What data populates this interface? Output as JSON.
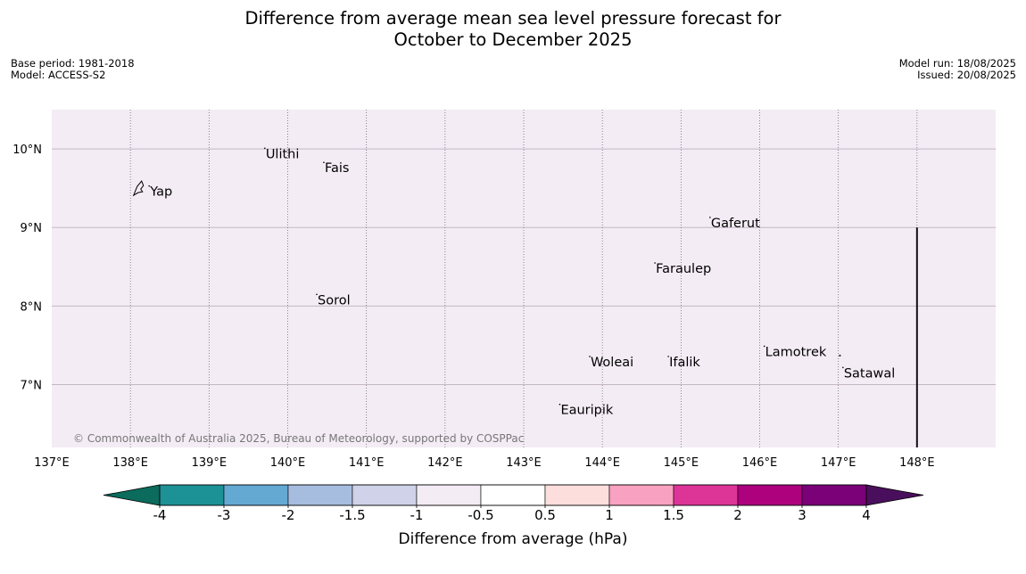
{
  "title_line1": "Difference from average mean sea level pressure forecast for",
  "title_line2": "October to December 2025",
  "meta_left": {
    "base_period": "Base period: 1981-2018",
    "model": "Model: ACCESS-S2"
  },
  "meta_right": {
    "model_run": "Model run: 18/08/2025",
    "issued": "Issued: 20/08/2025"
  },
  "copyright": "© Commonwealth of Australia 2025, Bureau of Meteorology, supported by COSPPac",
  "map": {
    "lon_range": [
      137.0,
      149.0
    ],
    "lat_range": [
      6.2,
      10.5
    ],
    "background_color": "#f4ecf5",
    "lon_ticks": [
      {
        "value": 137,
        "label": "137°E"
      },
      {
        "value": 138,
        "label": "138°E"
      },
      {
        "value": 139,
        "label": "139°E"
      },
      {
        "value": 140,
        "label": "140°E"
      },
      {
        "value": 141,
        "label": "141°E"
      },
      {
        "value": 142,
        "label": "142°E"
      },
      {
        "value": 143,
        "label": "143°E"
      },
      {
        "value": 144,
        "label": "144°E"
      },
      {
        "value": 145,
        "label": "145°E"
      },
      {
        "value": 146,
        "label": "146°E"
      },
      {
        "value": 147,
        "label": "147°E"
      },
      {
        "value": 148,
        "label": "148°E"
      }
    ],
    "lat_ticks": [
      {
        "value": 10,
        "label": "10°N"
      },
      {
        "value": 9,
        "label": "9°N"
      },
      {
        "value": 8,
        "label": "8°N"
      },
      {
        "value": 7,
        "label": "7°N"
      }
    ],
    "places": [
      {
        "name": "Yap",
        "lon": 138.25,
        "lat": 9.46
      },
      {
        "name": "Ulithi",
        "lon": 139.72,
        "lat": 9.94
      },
      {
        "name": "Fais",
        "lon": 140.47,
        "lat": 9.76
      },
      {
        "name": "Gaferut",
        "lon": 145.38,
        "lat": 9.06
      },
      {
        "name": "Faraulep",
        "lon": 144.68,
        "lat": 8.48
      },
      {
        "name": "Sorol",
        "lon": 140.38,
        "lat": 8.08
      },
      {
        "name": "Woleai",
        "lon": 143.85,
        "lat": 7.29
      },
      {
        "name": "Ifalik",
        "lon": 144.85,
        "lat": 7.29
      },
      {
        "name": "Lamotrek",
        "lon": 146.07,
        "lat": 7.42
      },
      {
        "name": "Satawal",
        "lon": 147.07,
        "lat": 7.15
      },
      {
        "name": "Eauripik",
        "lon": 143.47,
        "lat": 6.68
      }
    ],
    "boundary_line": {
      "lon": 148.0,
      "lat_from": 6.2,
      "lat_to": 9.0
    }
  },
  "colorbar": {
    "label": "Difference from average (hPa)",
    "tick_labels": [
      "-4",
      "-3",
      "-2",
      "-1.5",
      "-1",
      "-0.5",
      "0.5",
      "1",
      "1.5",
      "2",
      "3",
      "4"
    ],
    "low_extend_color": "#0b6b5d",
    "high_extend_color": "#4a0f5c",
    "colors": [
      "#1c9196",
      "#64a9d2",
      "#a6bde0",
      "#cfd2e8",
      "#f4ecf5",
      "#ffffff",
      "#fcdedd",
      "#f9a1c0",
      "#dd3497",
      "#ae017e",
      "#7a0177"
    ]
  }
}
